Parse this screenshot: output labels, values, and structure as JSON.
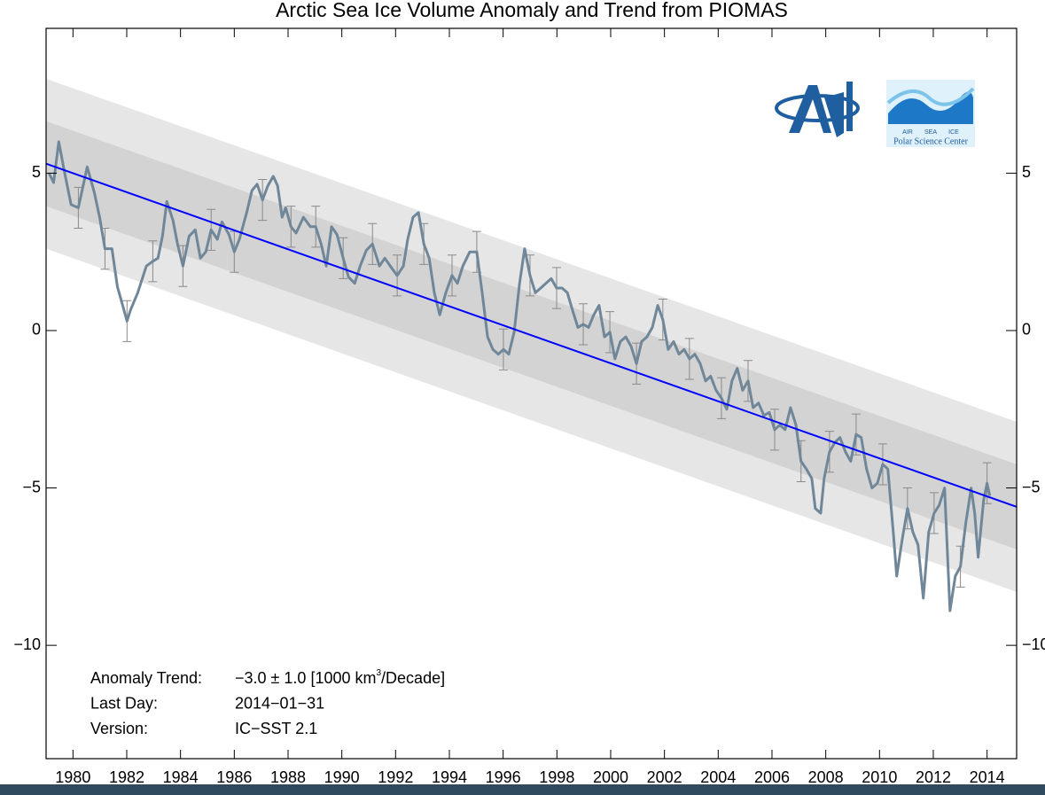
{
  "chart_data": {
    "type": "line",
    "title": "Arctic Sea Ice Volume Anomaly and Trend from PIOMAS",
    "xlim": [
      1979.0,
      2015.1
    ],
    "ylim": [
      -13.6,
      9.6
    ],
    "xticks": [
      1980,
      1982,
      1984,
      1986,
      1988,
      1990,
      1992,
      1994,
      1996,
      1998,
      2000,
      2002,
      2004,
      2006,
      2008,
      2010,
      2012,
      2014
    ],
    "yticks": [
      {
        "value": -10,
        "label": "−10"
      },
      {
        "value": -5,
        "label": "−5"
      },
      0,
      5
    ],
    "bands": [
      {
        "color": "#e6e6e6",
        "x": [
          1979.0,
          2015.1
        ],
        "lower": [
          2.6,
          -8.3
        ],
        "upper": [
          8.0,
          -2.9
        ]
      },
      {
        "color": "#d3d3d3",
        "x": [
          1979.0,
          2015.1
        ],
        "lower": [
          3.95,
          -6.95
        ],
        "upper": [
          6.65,
          -4.25
        ]
      }
    ],
    "trend": {
      "color": "#0000ff",
      "x": [
        1979.0,
        2015.1
      ],
      "values": [
        5.3,
        -5.6
      ]
    },
    "series": [
      {
        "color": "#6f8799",
        "x": [
          1979.11,
          1979.28,
          1979.47,
          1979.67,
          1979.93,
          1980.2,
          1980.53,
          1980.79,
          1980.99,
          1981.19,
          1981.45,
          1981.65,
          1981.85,
          1982.01,
          1982.14,
          1982.41,
          1982.73,
          1982.97,
          1983.16,
          1983.33,
          1983.49,
          1983.72,
          1983.89,
          1984.09,
          1984.32,
          1984.55,
          1984.74,
          1984.94,
          1985.14,
          1985.37,
          1985.54,
          1985.8,
          1986.0,
          1986.19,
          1986.46,
          1986.66,
          1986.85,
          1987.05,
          1987.25,
          1987.45,
          1987.61,
          1987.78,
          1987.91,
          1988.11,
          1988.3,
          1988.57,
          1988.83,
          1989.03,
          1989.23,
          1989.42,
          1989.62,
          1989.82,
          1990.05,
          1990.25,
          1990.48,
          1990.68,
          1990.91,
          1991.14,
          1991.4,
          1991.6,
          1991.8,
          1992.06,
          1992.29,
          1992.45,
          1992.65,
          1992.85,
          1993.05,
          1993.25,
          1993.44,
          1993.64,
          1993.87,
          1994.1,
          1994.3,
          1994.5,
          1994.76,
          1995.02,
          1995.22,
          1995.42,
          1995.62,
          1995.82,
          1996.01,
          1996.21,
          1996.41,
          1996.61,
          1996.8,
          1997.0,
          1997.2,
          1997.4,
          1997.59,
          1997.79,
          1997.99,
          1998.19,
          1998.39,
          1998.58,
          1998.78,
          1998.98,
          1999.18,
          1999.37,
          1999.57,
          1999.77,
          1999.97,
          2000.16,
          2000.36,
          2000.56,
          2000.76,
          2000.96,
          2001.15,
          2001.35,
          2001.55,
          2001.75,
          2001.94,
          2002.14,
          2002.34,
          2002.54,
          2002.73,
          2002.93,
          2003.13,
          2003.33,
          2003.53,
          2003.72,
          2003.92,
          2004.12,
          2004.32,
          2004.51,
          2004.71,
          2004.91,
          2005.11,
          2005.3,
          2005.5,
          2005.7,
          2005.9,
          2006.1,
          2006.29,
          2006.49,
          2006.69,
          2006.89,
          2007.08,
          2007.28,
          2007.48,
          2007.61,
          2007.81,
          2007.94,
          2008.14,
          2008.34,
          2008.53,
          2008.73,
          2008.93,
          2009.13,
          2009.32,
          2009.52,
          2009.72,
          2009.92,
          2010.12,
          2010.31,
          2010.51,
          2010.64,
          2010.84,
          2011.04,
          2011.24,
          2011.43,
          2011.63,
          2011.83,
          2012.03,
          2012.22,
          2012.42,
          2012.62,
          2012.82,
          2013.01,
          2013.21,
          2013.41,
          2013.54,
          2013.67,
          2013.87,
          2014.0,
          2014.1
        ],
        "values": [
          5.0,
          4.7,
          6.0,
          5.1,
          4.0,
          3.9,
          5.2,
          4.4,
          3.6,
          2.6,
          2.6,
          1.4,
          0.8,
          0.3,
          0.65,
          1.2,
          2.05,
          2.2,
          2.3,
          3.0,
          4.1,
          3.5,
          2.75,
          2.05,
          3.0,
          3.2,
          2.3,
          2.5,
          3.2,
          2.9,
          3.45,
          3.05,
          2.5,
          2.9,
          3.75,
          4.45,
          4.65,
          4.15,
          4.6,
          4.9,
          4.6,
          3.6,
          3.9,
          3.3,
          3.1,
          3.6,
          3.3,
          3.3,
          2.75,
          2.05,
          3.3,
          3.05,
          2.3,
          1.7,
          1.5,
          2.05,
          2.55,
          2.75,
          2.05,
          2.3,
          2.05,
          1.75,
          2.05,
          2.9,
          3.6,
          3.75,
          2.75,
          2.3,
          1.2,
          0.5,
          1.2,
          1.75,
          1.5,
          2.05,
          2.5,
          2.5,
          1.2,
          -0.2,
          -0.6,
          -0.75,
          -0.6,
          -0.75,
          -0.05,
          1.5,
          2.6,
          1.75,
          1.2,
          1.35,
          1.5,
          1.65,
          1.35,
          1.35,
          1.2,
          0.65,
          0.1,
          0.2,
          0.1,
          0.5,
          0.8,
          -0.2,
          -0.05,
          -0.9,
          -0.35,
          -0.2,
          -0.5,
          -1.05,
          -0.35,
          -0.2,
          0.1,
          0.8,
          0.35,
          -0.6,
          -0.35,
          -0.75,
          -0.6,
          -0.9,
          -0.75,
          -1.05,
          -1.6,
          -1.45,
          -1.9,
          -2.15,
          -2.5,
          -1.6,
          -1.2,
          -1.9,
          -1.6,
          -2.45,
          -2.3,
          -2.7,
          -2.6,
          -3.15,
          -3.0,
          -3.15,
          -2.45,
          -3.0,
          -4.15,
          -4.4,
          -4.7,
          -5.65,
          -5.8,
          -4.7,
          -3.85,
          -3.55,
          -3.4,
          -3.85,
          -4.15,
          -3.3,
          -3.4,
          -4.4,
          -5.0,
          -4.85,
          -4.25,
          -4.4,
          -6.4,
          -7.8,
          -6.65,
          -5.65,
          -6.4,
          -6.8,
          -8.5,
          -6.4,
          -5.8,
          -5.55,
          -5.0,
          -8.9,
          -7.8,
          -7.5,
          -6.1,
          -5.0,
          -5.8,
          -7.2,
          -5.4,
          -4.85,
          -5.25
        ]
      }
    ],
    "error_bars": {
      "color": "#8a8a8a",
      "x": [
        1980.2,
        1981.19,
        1982.01,
        1982.97,
        1984.09,
        1985.14,
        1986.0,
        1987.05,
        1988.11,
        1989.03,
        1990.05,
        1991.14,
        1992.06,
        1993.05,
        1994.1,
        1995.02,
        1996.01,
        1997.0,
        1997.99,
        1998.98,
        1999.97,
        2000.96,
        2001.94,
        2002.93,
        2004.12,
        2005.11,
        2006.1,
        2007.08,
        2008.14,
        2009.13,
        2010.12,
        2011.04,
        2012.03,
        2013.01,
        2014.0
      ],
      "values": [
        3.9,
        2.6,
        0.3,
        2.2,
        2.05,
        3.2,
        2.5,
        4.15,
        3.3,
        3.3,
        2.3,
        2.75,
        1.75,
        2.75,
        1.75,
        2.5,
        -0.6,
        1.75,
        1.35,
        0.2,
        -0.05,
        -1.05,
        0.35,
        -0.9,
        -2.15,
        -1.6,
        -3.15,
        -4.15,
        -3.85,
        -3.3,
        -4.25,
        -5.65,
        -5.8,
        -7.5,
        -4.85
      ],
      "errors": [
        0.65,
        0.65,
        0.65,
        0.65,
        0.65,
        0.65,
        0.65,
        0.65,
        0.65,
        0.65,
        0.65,
        0.65,
        0.65,
        0.65,
        0.65,
        0.65,
        0.65,
        0.65,
        0.65,
        0.65,
        0.65,
        0.65,
        0.65,
        0.65,
        0.65,
        0.65,
        0.65,
        0.65,
        0.65,
        0.65,
        0.65,
        0.65,
        0.65,
        0.65,
        0.65
      ]
    },
    "annotations": [
      {
        "label": "Anomaly Trend:",
        "value": [
          "−3.0 ± 1.0 [1000 km",
          "3",
          "/Decade]"
        ]
      },
      {
        "label": "Last Day:",
        "value": [
          "2014−01−31"
        ]
      },
      {
        "label": "Version:",
        "value": [
          "IC−SST 2.1"
        ]
      }
    ],
    "logo_labels": [
      "AIR",
      "SEA",
      "ICE",
      "Polar Science Center"
    ]
  }
}
